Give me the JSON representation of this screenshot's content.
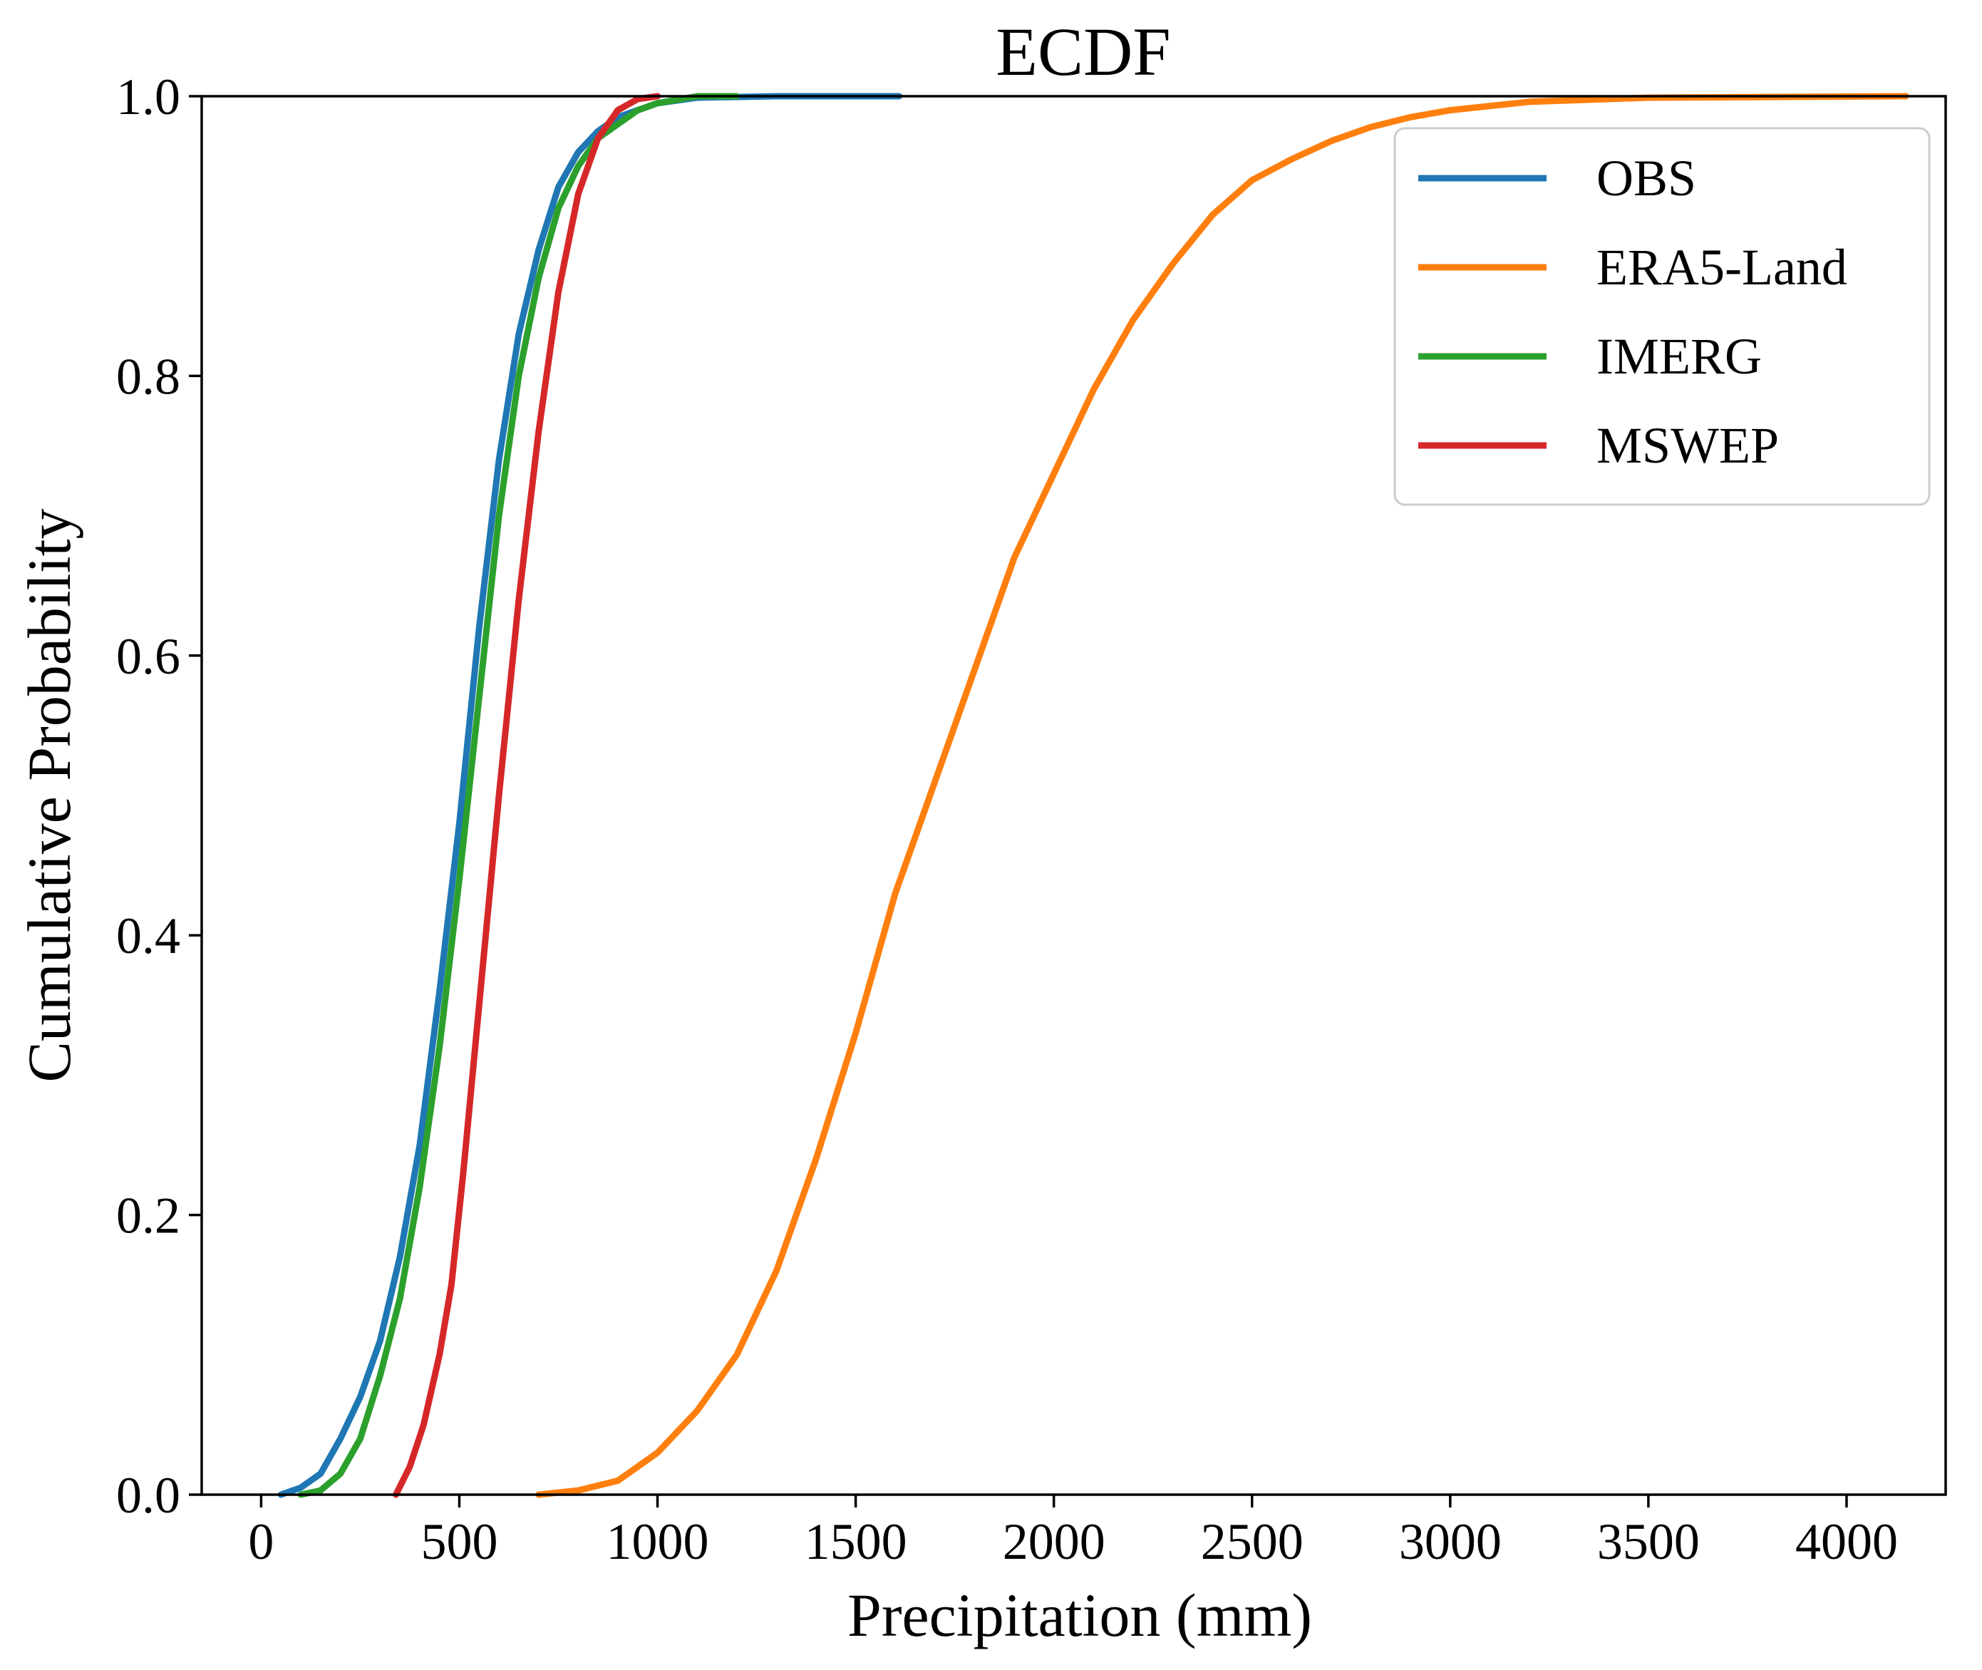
{
  "chart_data": {
    "type": "line",
    "title": "ECDF",
    "xlabel": "Precipitation (mm)",
    "ylabel": "Cumulative Probability",
    "xlim": [
      -150,
      4250
    ],
    "ylim": [
      0,
      1
    ],
    "xticks": [
      0,
      500,
      1000,
      1500,
      2000,
      2500,
      3000,
      3500,
      4000
    ],
    "yticks": [
      0.0,
      0.2,
      0.4,
      0.6,
      0.8,
      1.0
    ],
    "xtick_labels": [
      "0",
      "500",
      "1000",
      "1500",
      "2000",
      "2500",
      "3000",
      "3500",
      "4000"
    ],
    "ytick_labels": [
      "0.0",
      "0.2",
      "0.4",
      "0.6",
      "0.8",
      "1.0"
    ],
    "grid": false,
    "legend": {
      "position": "top-right"
    },
    "series": [
      {
        "name": "OBS",
        "color": "#1f77b4",
        "points": [
          [
            50,
            0
          ],
          [
            100,
            0.005
          ],
          [
            150,
            0.015
          ],
          [
            200,
            0.04
          ],
          [
            250,
            0.07
          ],
          [
            300,
            0.11
          ],
          [
            350,
            0.17
          ],
          [
            400,
            0.25
          ],
          [
            450,
            0.36
          ],
          [
            500,
            0.48
          ],
          [
            550,
            0.62
          ],
          [
            600,
            0.74
          ],
          [
            650,
            0.83
          ],
          [
            700,
            0.89
          ],
          [
            750,
            0.935
          ],
          [
            800,
            0.96
          ],
          [
            850,
            0.975
          ],
          [
            900,
            0.985
          ],
          [
            950,
            0.99
          ],
          [
            1000,
            0.995
          ],
          [
            1100,
            0.999
          ],
          [
            1300,
            1.0
          ],
          [
            1610,
            1.0
          ]
        ]
      },
      {
        "name": "ERA5-Land",
        "color": "#ff7f0e",
        "points": [
          [
            700,
            0
          ],
          [
            800,
            0.003
          ],
          [
            900,
            0.01
          ],
          [
            1000,
            0.03
          ],
          [
            1100,
            0.06
          ],
          [
            1200,
            0.1
          ],
          [
            1300,
            0.16
          ],
          [
            1400,
            0.24
          ],
          [
            1500,
            0.33
          ],
          [
            1600,
            0.43
          ],
          [
            1700,
            0.51
          ],
          [
            1800,
            0.59
          ],
          [
            1900,
            0.67
          ],
          [
            2000,
            0.73
          ],
          [
            2100,
            0.79
          ],
          [
            2200,
            0.84
          ],
          [
            2300,
            0.88
          ],
          [
            2400,
            0.915
          ],
          [
            2500,
            0.94
          ],
          [
            2600,
            0.955
          ],
          [
            2700,
            0.968
          ],
          [
            2800,
            0.978
          ],
          [
            2900,
            0.985
          ],
          [
            3000,
            0.99
          ],
          [
            3200,
            0.996
          ],
          [
            3500,
            0.999
          ],
          [
            4150,
            1.0
          ]
        ]
      },
      {
        "name": "IMERG",
        "color": "#2ca02c",
        "points": [
          [
            100,
            0
          ],
          [
            150,
            0.003
          ],
          [
            200,
            0.015
          ],
          [
            250,
            0.04
          ],
          [
            300,
            0.085
          ],
          [
            350,
            0.14
          ],
          [
            400,
            0.22
          ],
          [
            450,
            0.32
          ],
          [
            500,
            0.44
          ],
          [
            550,
            0.57
          ],
          [
            600,
            0.7
          ],
          [
            650,
            0.8
          ],
          [
            700,
            0.87
          ],
          [
            750,
            0.92
          ],
          [
            800,
            0.95
          ],
          [
            850,
            0.97
          ],
          [
            900,
            0.98
          ],
          [
            950,
            0.99
          ],
          [
            1000,
            0.995
          ],
          [
            1100,
            1.0
          ],
          [
            1200,
            1.0
          ]
        ]
      },
      {
        "name": "MSWEP",
        "color": "#d62728",
        "points": [
          [
            340,
            0
          ],
          [
            375,
            0.02
          ],
          [
            410,
            0.05
          ],
          [
            450,
            0.1
          ],
          [
            480,
            0.15
          ],
          [
            510,
            0.23
          ],
          [
            550,
            0.35
          ],
          [
            600,
            0.5
          ],
          [
            650,
            0.64
          ],
          [
            700,
            0.76
          ],
          [
            750,
            0.86
          ],
          [
            800,
            0.93
          ],
          [
            850,
            0.97
          ],
          [
            900,
            0.99
          ],
          [
            950,
            0.998
          ],
          [
            1000,
            1.0
          ]
        ]
      }
    ]
  }
}
